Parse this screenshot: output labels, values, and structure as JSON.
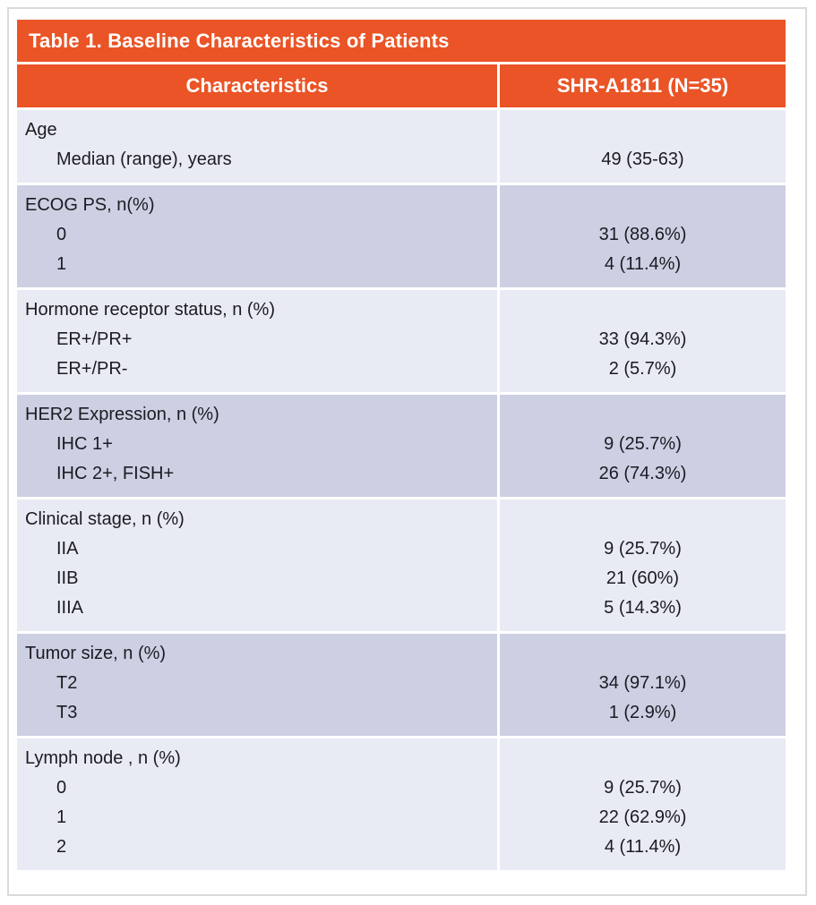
{
  "title": "Table 1. Baseline Characteristics of Patients",
  "table": {
    "columns": [
      {
        "label": "Characteristics"
      },
      {
        "label": "SHR-A1811 (N=35)"
      }
    ],
    "sections": [
      {
        "id": "age",
        "shade": "light",
        "rows": [
          {
            "label": "Age",
            "indent": false,
            "value": ""
          },
          {
            "label": "Median (range), years",
            "indent": true,
            "value": "49 (35-63)"
          }
        ]
      },
      {
        "id": "ecog-ps",
        "shade": "dark",
        "rows": [
          {
            "label": "ECOG PS, n(%)",
            "indent": false,
            "value": ""
          },
          {
            "label": "0",
            "indent": true,
            "value": "31 (88.6%)"
          },
          {
            "label": "1",
            "indent": true,
            "value": "4 (11.4%)"
          }
        ]
      },
      {
        "id": "hormone-receptor-status",
        "shade": "light",
        "rows": [
          {
            "label": "Hormone receptor status, n (%)",
            "indent": false,
            "value": ""
          },
          {
            "label": "ER+/PR+",
            "indent": true,
            "value": "33 (94.3%)"
          },
          {
            "label": "ER+/PR-",
            "indent": true,
            "value": "2 (5.7%)"
          }
        ]
      },
      {
        "id": "her2-expression",
        "shade": "dark",
        "rows": [
          {
            "label": "HER2 Expression, n (%)",
            "indent": false,
            "value": ""
          },
          {
            "label": "IHC 1+",
            "indent": true,
            "value": "9 (25.7%)"
          },
          {
            "label": "IHC 2+, FISH+",
            "indent": true,
            "value": "26 (74.3%)"
          }
        ]
      },
      {
        "id": "clinical-stage",
        "shade": "light",
        "rows": [
          {
            "label": "Clinical stage, n (%)",
            "indent": false,
            "value": ""
          },
          {
            "label": "IIA",
            "indent": true,
            "value": "9 (25.7%)"
          },
          {
            "label": "IIB",
            "indent": true,
            "value": "21 (60%)"
          },
          {
            "label": "IIIA",
            "indent": true,
            "value": "5 (14.3%)"
          }
        ]
      },
      {
        "id": "tumor-size",
        "shade": "dark",
        "rows": [
          {
            "label": "Tumor size, n (%)",
            "indent": false,
            "value": ""
          },
          {
            "label": "T2",
            "indent": true,
            "value": "34 (97.1%)"
          },
          {
            "label": "T3",
            "indent": true,
            "value": "1 (2.9%)"
          }
        ]
      },
      {
        "id": "lymph-node",
        "shade": "light",
        "rows": [
          {
            "label": "Lymph node , n (%)",
            "indent": false,
            "value": ""
          },
          {
            "label": "0",
            "indent": true,
            "value": "9 (25.7%)"
          },
          {
            "label": "1",
            "indent": true,
            "value": "22 (62.9%)"
          },
          {
            "label": "2",
            "indent": true,
            "value": "4 (11.4%)"
          }
        ]
      }
    ]
  },
  "colors": {
    "accent_orange": "#EA5426",
    "row_light": "#E9EBF4",
    "row_dark": "#CDD0E3",
    "header_text": "#FFFFFF",
    "body_text": "#1B1B22",
    "frame_border": "#DADADA",
    "divider": "#FFFFFF"
  }
}
